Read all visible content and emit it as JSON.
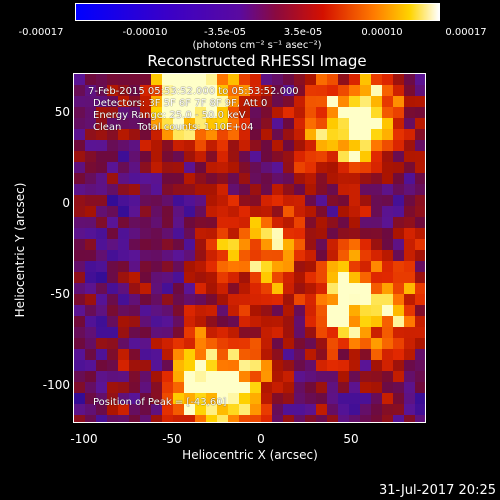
{
  "colorbar": {
    "ticks": [
      "-0.00017",
      "-0.00010",
      "-3.5e-05",
      "3.5e-05",
      "0.00010",
      "0.00017"
    ],
    "unit_label": "(photons cm⁻² s⁻¹ asec⁻²)"
  },
  "title": "Reconstructed RHESSI Image",
  "info": {
    "time_range": "7-Feb-2015 05:53:52.000 to 05:53:52.000",
    "detectors": "Detectors: 3F 5F 6F 7F 8F 9F, Att 0",
    "energy": "Energy Range: 25.0 - 50.0 keV",
    "method": "Clean     Total counts: 1.10E+04",
    "peak": "Position of Peak = [-43,60]"
  },
  "chart_data": {
    "type": "heatmap",
    "title": "Reconstructed RHESSI Image",
    "xlabel": "Heliocentric X (arcsec)",
    "ylabel": "Heliocentric Y (arcsec)",
    "xlim": [
      -110,
      85
    ],
    "ylim": [
      -122,
      72
    ],
    "x_ticks": [
      "-100",
      "-50",
      "0",
      "50"
    ],
    "y_ticks": [
      "50",
      "0",
      "-50",
      "-100"
    ],
    "colorbar_range": [
      -0.00017,
      0.00017
    ],
    "bright_sources": [
      {
        "x": -43,
        "y": 60,
        "level": 1.0
      },
      {
        "x": 45,
        "y": 45,
        "level": 0.9
      },
      {
        "x": 50,
        "y": -55,
        "level": 0.85
      },
      {
        "x": -30,
        "y": -100,
        "level": 0.95
      },
      {
        "x": -10,
        "y": -25,
        "level": 0.65
      }
    ],
    "grid": false
  },
  "footer": {
    "timestamp": "31-Jul-2017 20:25"
  },
  "colors": {
    "background": "#000000",
    "text": "#ffffff"
  }
}
